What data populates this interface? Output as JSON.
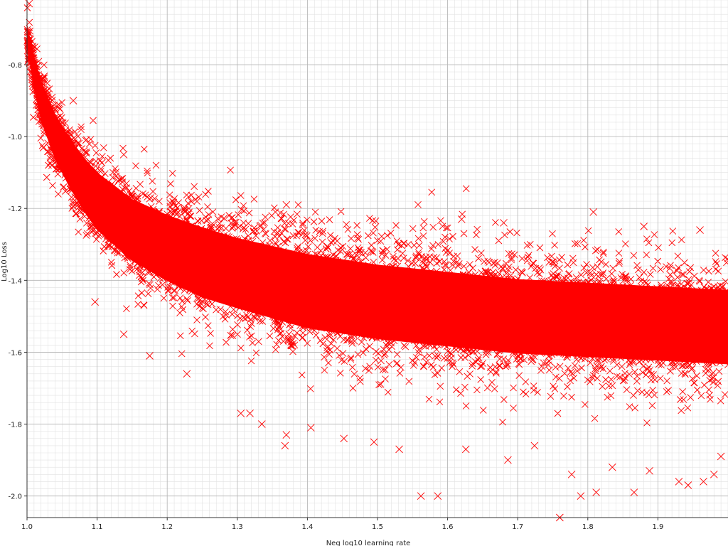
{
  "chart_data": {
    "type": "scatter",
    "xlabel": "Neg log10 learning rate",
    "ylabel": "Log10 Loss",
    "xlim": [
      1.0,
      2.0
    ],
    "ylim": [
      -2.06,
      -0.62
    ],
    "x_ticks": [
      1.0,
      1.1,
      1.2,
      1.3,
      1.4,
      1.5,
      1.6,
      1.7,
      1.8,
      1.9
    ],
    "x_tick_labels": [
      "1.0",
      "1.1",
      "1.2",
      "1.3",
      "1.4",
      "1.5",
      "1.6",
      "1.7",
      "1.8",
      "1.9"
    ],
    "y_ticks": [
      -0.8,
      -1.0,
      -1.2,
      -1.4,
      -1.6,
      -1.8,
      -2.0
    ],
    "y_tick_labels": [
      "-0.8",
      "-1.0",
      "-1.2",
      "-1.4",
      "-1.6",
      "-1.8",
      "-2.0"
    ],
    "grid": true,
    "minor_grid": true,
    "marker": "x",
    "marker_color": "#ff0000",
    "series": [
      {
        "trend": {
          "x": [
            1.0,
            1.01,
            1.02,
            1.04,
            1.06,
            1.08,
            1.1,
            1.15,
            1.2,
            1.25,
            1.3,
            1.4,
            1.5,
            1.6,
            1.7,
            1.8,
            1.9,
            2.0
          ],
          "y": [
            -0.72,
            -0.82,
            -0.9,
            -1.0,
            -1.07,
            -1.13,
            -1.18,
            -1.26,
            -1.31,
            -1.35,
            -1.38,
            -1.43,
            -1.46,
            -1.48,
            -1.5,
            -1.51,
            -1.52,
            -1.53
          ],
          "sd": [
            0.03,
            0.04,
            0.05,
            0.055,
            0.06,
            0.065,
            0.07,
            0.075,
            0.08,
            0.085,
            0.085,
            0.09,
            0.09,
            0.09,
            0.09,
            0.09,
            0.09,
            0.09
          ]
        },
        "points": [
          {
            "x": 1.003,
            "y": -0.63
          },
          {
            "x": 1.066,
            "y": -0.9
          },
          {
            "x": 1.138,
            "y": -1.05
          },
          {
            "x": 1.808,
            "y": -1.21
          },
          {
            "x": 1.37,
            "y": -1.19
          },
          {
            "x": 1.097,
            "y": -1.46
          },
          {
            "x": 1.138,
            "y": -1.55
          },
          {
            "x": 1.175,
            "y": -1.61
          },
          {
            "x": 1.228,
            "y": -1.66
          },
          {
            "x": 1.305,
            "y": -1.77
          },
          {
            "x": 1.318,
            "y": -1.77
          },
          {
            "x": 1.335,
            "y": -1.8
          },
          {
            "x": 1.37,
            "y": -1.83
          },
          {
            "x": 1.368,
            "y": -1.86
          },
          {
            "x": 1.405,
            "y": -1.81
          },
          {
            "x": 1.452,
            "y": -1.84
          },
          {
            "x": 1.495,
            "y": -1.85
          },
          {
            "x": 1.531,
            "y": -1.87
          },
          {
            "x": 1.562,
            "y": -2.0
          },
          {
            "x": 1.586,
            "y": -2.0
          },
          {
            "x": 1.626,
            "y": -1.87
          },
          {
            "x": 1.686,
            "y": -1.9
          },
          {
            "x": 1.724,
            "y": -1.86
          },
          {
            "x": 1.76,
            "y": -2.06
          },
          {
            "x": 1.777,
            "y": -1.94
          },
          {
            "x": 1.79,
            "y": -2.0
          },
          {
            "x": 1.812,
            "y": -1.99
          },
          {
            "x": 1.835,
            "y": -1.92
          },
          {
            "x": 1.866,
            "y": -1.99
          },
          {
            "x": 1.888,
            "y": -1.93
          },
          {
            "x": 1.93,
            "y": -1.96
          },
          {
            "x": 1.943,
            "y": -1.97
          },
          {
            "x": 1.965,
            "y": -1.96
          },
          {
            "x": 1.98,
            "y": -1.94
          },
          {
            "x": 1.99,
            "y": -1.89
          },
          {
            "x": 1.68,
            "y": -1.24
          },
          {
            "x": 1.88,
            "y": -1.25
          },
          {
            "x": 1.96,
            "y": -1.26
          },
          {
            "x": 1.62,
            "y": -1.23
          }
        ]
      }
    ]
  }
}
